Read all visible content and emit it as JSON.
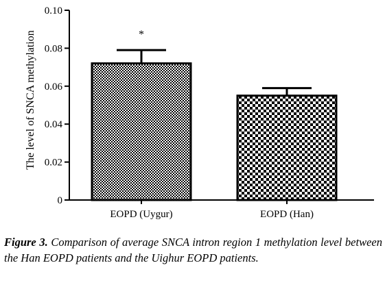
{
  "chart_data": {
    "type": "bar",
    "categories": [
      "EOPD (Uygur)",
      "EOPD (Han)"
    ],
    "values": [
      0.072,
      0.055
    ],
    "error_upper": [
      0.079,
      0.059
    ],
    "significance": [
      "*",
      ""
    ],
    "ylabel": "The level of SNCA methylation",
    "ylim": [
      0,
      0.1
    ],
    "yticks": [
      "0",
      "0.02",
      "0.04",
      "0.06",
      "0.08",
      "0.10"
    ],
    "grid": false,
    "bar_patterns": [
      "dense-checker",
      "coarse-checker"
    ],
    "colors": {
      "bar_fill": "#000000",
      "bar_background": "#ffffff",
      "axis": "#000000"
    }
  },
  "caption": {
    "label": "Figure 3.",
    "text": "Comparison of average SNCA intron region 1 methylation level between the Han EOPD patients and the Uighur EOPD patients."
  }
}
